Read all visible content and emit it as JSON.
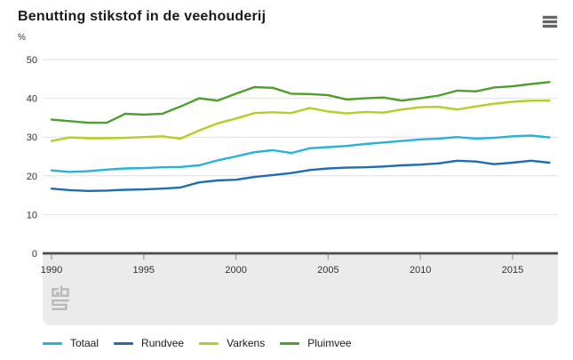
{
  "header": {
    "title": "Benutting stikstof in de veehouderij",
    "menu_icon": "hamburger-icon"
  },
  "footer": {
    "logo_icon": "cbs-logo"
  },
  "chart_data": {
    "type": "line",
    "title": "Benutting stikstof in de veehouderij",
    "unit_label": "%",
    "xlabel": "",
    "ylabel": "%",
    "ylim": [
      0,
      50
    ],
    "grid": true,
    "legend_position": "bottom",
    "x": [
      1990,
      1991,
      1992,
      1993,
      1994,
      1995,
      1996,
      1997,
      1998,
      1999,
      2000,
      2001,
      2002,
      2003,
      2004,
      2005,
      2006,
      2007,
      2008,
      2009,
      2010,
      2011,
      2012,
      2013,
      2014,
      2015,
      2016,
      2017
    ],
    "xticks": [
      1990,
      1995,
      2000,
      2005,
      2010,
      2015
    ],
    "yticks": [
      0,
      10,
      20,
      30,
      40,
      50
    ],
    "series": [
      {
        "name": "Totaal",
        "color": "#26b3d7",
        "values": [
          21.4,
          21.0,
          21.2,
          21.6,
          21.9,
          22.0,
          22.2,
          22.3,
          22.7,
          24.0,
          25.0,
          26.1,
          26.6,
          25.9,
          27.1,
          27.4,
          27.7,
          28.2,
          28.6,
          29.0,
          29.4,
          29.6,
          30.0,
          29.6,
          29.8,
          30.2,
          30.4,
          29.9
        ]
      },
      {
        "name": "Rundvee",
        "color": "#1f6cb4",
        "values": [
          16.7,
          16.3,
          16.1,
          16.2,
          16.4,
          16.5,
          16.7,
          17.0,
          18.3,
          18.8,
          19.0,
          19.7,
          20.2,
          20.7,
          21.5,
          21.9,
          22.1,
          22.2,
          22.4,
          22.7,
          22.9,
          23.2,
          23.9,
          23.7,
          23.0,
          23.4,
          23.9,
          23.4
        ]
      },
      {
        "name": "Varkens",
        "color": "#b2cf23",
        "values": [
          29.0,
          29.9,
          29.7,
          29.7,
          29.8,
          30.0,
          30.2,
          29.6,
          31.7,
          33.5,
          34.8,
          36.2,
          36.4,
          36.2,
          37.5,
          36.6,
          36.1,
          36.5,
          36.3,
          37.1,
          37.7,
          37.8,
          37.1,
          37.9,
          38.6,
          39.1,
          39.4,
          39.4
        ]
      },
      {
        "name": "Pluimvee",
        "color": "#4f9e2c",
        "values": [
          34.5,
          34.1,
          33.7,
          33.7,
          36.0,
          35.8,
          36.0,
          37.9,
          40.0,
          39.4,
          41.2,
          42.9,
          42.7,
          41.2,
          41.1,
          40.8,
          39.7,
          40.0,
          40.2,
          39.4,
          40.0,
          40.7,
          42.0,
          41.8,
          42.8,
          43.1,
          43.7,
          44.2
        ]
      }
    ]
  }
}
